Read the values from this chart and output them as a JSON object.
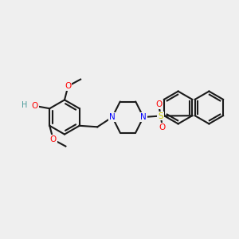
{
  "bg_color": "#efefef",
  "bond_color": "#1a1a1a",
  "bond_width": 1.5,
  "atom_colors": {
    "O": "#ff0000",
    "N": "#0000ff",
    "S": "#cccc00",
    "C": "#1a1a1a",
    "H": "#4a9a9a"
  },
  "font_size": 7.5
}
